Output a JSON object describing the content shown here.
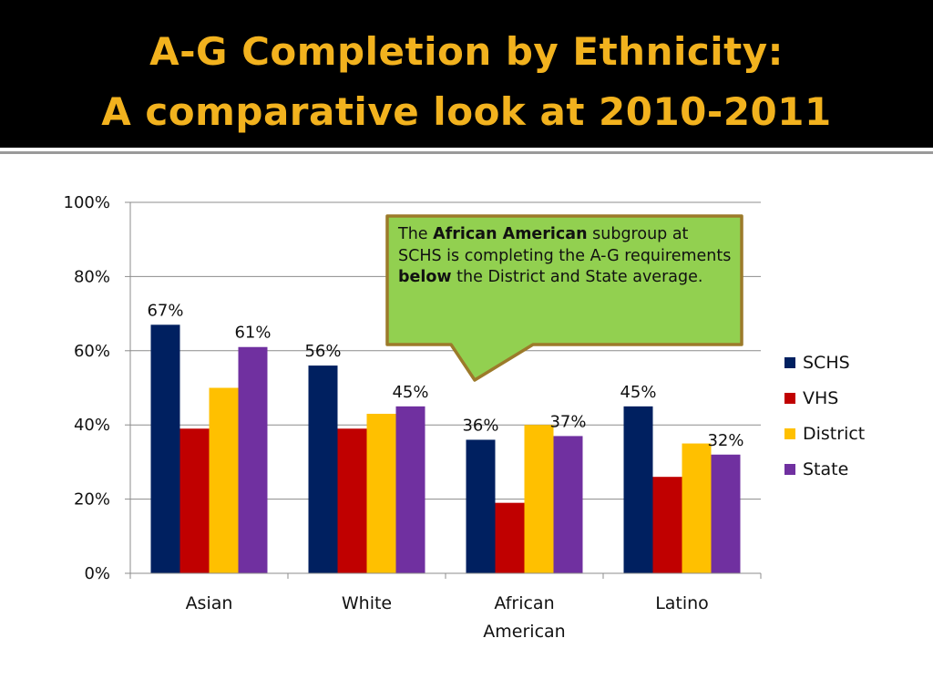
{
  "slide": {
    "title_line1": "A-G Completion by Ethnicity:",
    "title_line2": "A comparative look at 2010-2011"
  },
  "callout": {
    "p1": "The ",
    "b1": "African American",
    "p2": " subgroup at SCHS is completing the A-G requirements ",
    "b2": "below",
    "p3": " the District and State average."
  },
  "colors": {
    "title": "#f2b21e",
    "callout_fill": "#92d050",
    "callout_border": "#9c7a2a"
  },
  "chart_data": {
    "type": "bar",
    "categories": [
      "Asian",
      "White",
      "African American",
      "Latino"
    ],
    "series": [
      {
        "name": "SCHS",
        "color": "#002060",
        "values": [
          67,
          56,
          36,
          45
        ]
      },
      {
        "name": "VHS",
        "color": "#c00000",
        "values": [
          39,
          39,
          19,
          26
        ]
      },
      {
        "name": "District",
        "color": "#ffc000",
        "values": [
          50,
          43,
          40,
          35
        ]
      },
      {
        "name": "State",
        "color": "#7030a0",
        "values": [
          61,
          45,
          37,
          32
        ]
      }
    ],
    "data_labels": [
      {
        "series": "SCHS",
        "category": "Asian",
        "text": "67%"
      },
      {
        "series": "State",
        "category": "Asian",
        "text": "61%"
      },
      {
        "series": "SCHS",
        "category": "White",
        "text": "56%"
      },
      {
        "series": "State",
        "category": "White",
        "text": "45%"
      },
      {
        "series": "SCHS",
        "category": "African American",
        "text": "36%"
      },
      {
        "series": "State",
        "category": "African American",
        "text": "37%"
      },
      {
        "series": "SCHS",
        "category": "Latino",
        "text": "45%"
      },
      {
        "series": "State",
        "category": "Latino",
        "text": "32%"
      }
    ],
    "yticks": [
      0,
      20,
      40,
      60,
      80,
      100
    ],
    "ytick_labels": [
      "0%",
      "20%",
      "40%",
      "60%",
      "80%",
      "100%"
    ],
    "ylim": [
      0,
      100
    ],
    "grid": true,
    "legend": "right"
  }
}
